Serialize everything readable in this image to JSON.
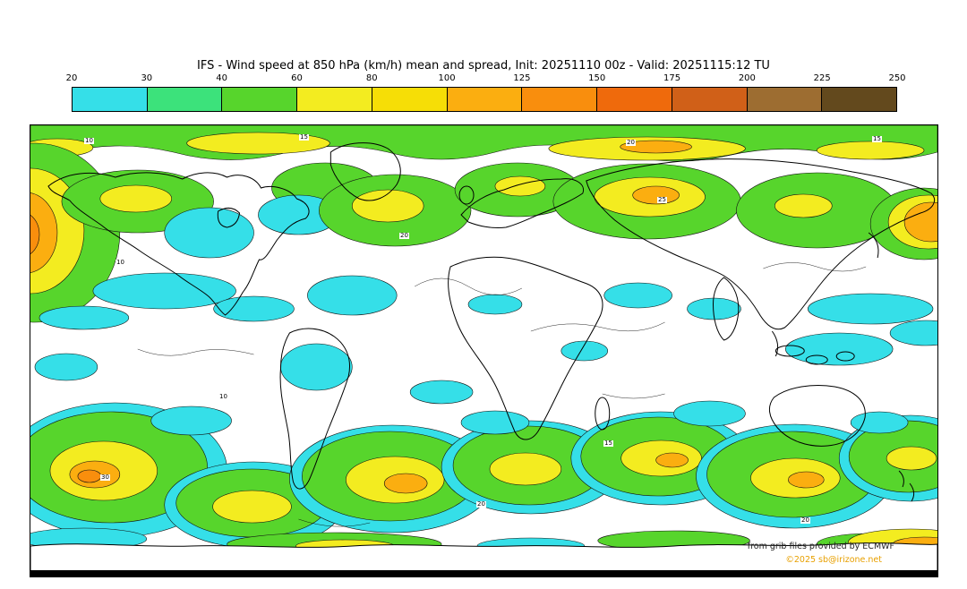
{
  "header": {
    "title": "IFS - Wind speed at 850 hPa (km/h) mean and spread, Init: 20251110 00z - Valid: 20251115:12 TU"
  },
  "colorbar": {
    "ticks": [
      "20",
      "30",
      "40",
      "60",
      "80",
      "100",
      "125",
      "150",
      "175",
      "200",
      "225",
      "250"
    ],
    "segment_colors": [
      "#35dfe8",
      "#3ce27b",
      "#57d52c",
      "#f3ec20",
      "#f6de06",
      "#fbae10",
      "#f98e0d",
      "#ef6a0c",
      "#d06018",
      "#9d6d31",
      "#63491d"
    ]
  },
  "map": {
    "contour_labels": [
      "10",
      "15",
      "20",
      "15",
      "10",
      "20",
      "25",
      "10",
      "20",
      "30",
      "15",
      "20"
    ],
    "attribution": {
      "source": "from grib files provided by ECMWF",
      "copyright": "©2025 sb@irizone.net",
      "copyright_color": "#e8a000"
    }
  },
  "chart_data": {
    "type": "heatmap",
    "title": "IFS - Wind speed at 850 hPa (km/h) mean and spread, Init: 20251110 00z - Valid: 20251115:12 TU",
    "legend_ticks": [
      20,
      30,
      40,
      60,
      80,
      100,
      125,
      150,
      175,
      200,
      225,
      250
    ],
    "units": "km/h",
    "legend_position": "top"
  }
}
